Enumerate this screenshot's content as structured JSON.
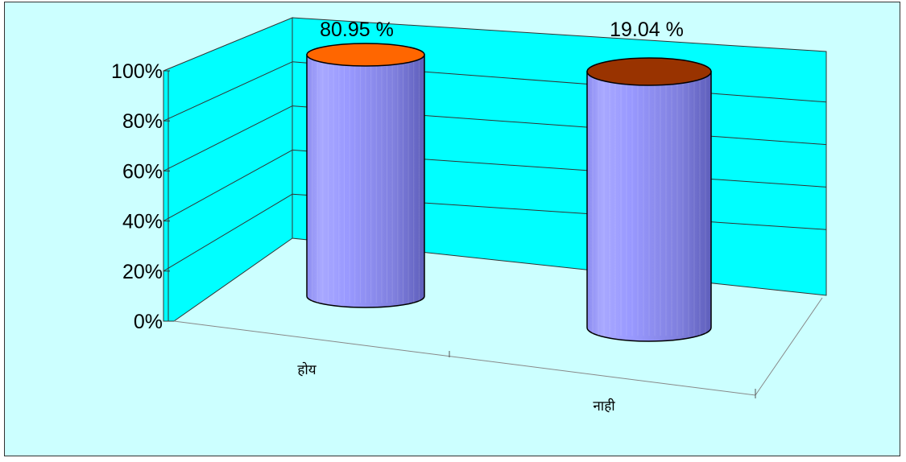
{
  "chart_data": {
    "type": "bar",
    "style": "3d-cylinder",
    "categories": [
      "होय",
      "नाही"
    ],
    "values": [
      80.95,
      19.04
    ],
    "data_labels": [
      "80.95 %",
      "19.04 %"
    ],
    "top_colors": [
      "#ff6600",
      "#993300"
    ],
    "body_color": "#9999ff",
    "wall_color": "#00ffff",
    "background_color": "#ccffff",
    "ylim": [
      0,
      100
    ],
    "yticks": [
      "0%",
      "20%",
      "40%",
      "60%",
      "80%",
      "100%"
    ],
    "grid": true,
    "legend": "none",
    "title": "",
    "xlabel": "",
    "ylabel": ""
  }
}
